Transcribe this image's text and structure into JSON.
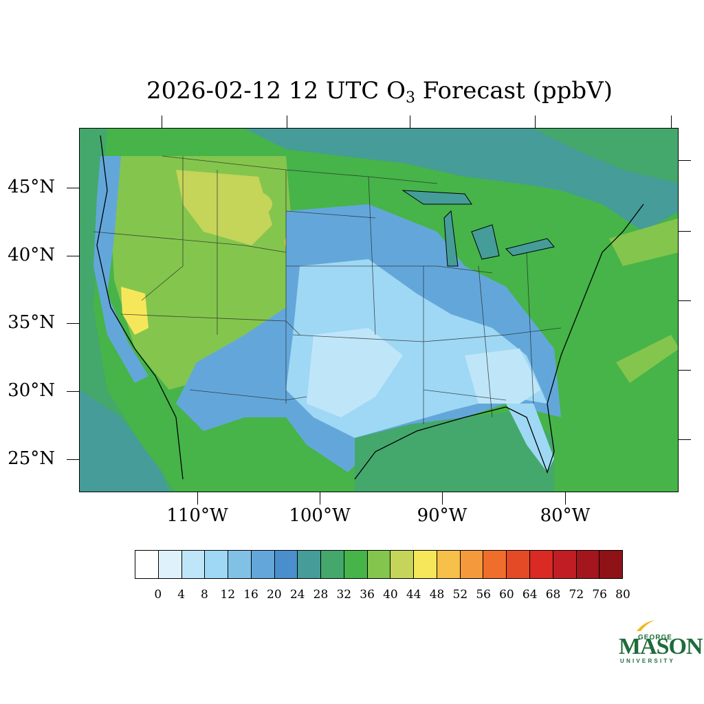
{
  "title": {
    "prefix": "2026-02-12 12 UTC O",
    "subscript": "3",
    "suffix": " Forecast (ppbV)"
  },
  "map": {
    "projection": "lambert-conformal",
    "region": "CONUS",
    "lat_labels": [
      "45°N",
      "40°N",
      "35°N",
      "30°N",
      "25°N"
    ],
    "lon_labels": [
      "110°W",
      "100°W",
      "90°W",
      "80°W"
    ]
  },
  "colorbar": {
    "colors": [
      "#ffffff",
      "#dff2fb",
      "#bfe6f8",
      "#9fd8f4",
      "#82c1e6",
      "#63a7da",
      "#4a8fcb",
      "#469c98",
      "#44a86c",
      "#46b449",
      "#84c54e",
      "#c4d55a",
      "#f6e75a",
      "#f6c04a",
      "#f49a3c",
      "#f06e2c",
      "#e54a26",
      "#d92a24",
      "#c01e24",
      "#a4161e",
      "#8e1216"
    ],
    "labels": [
      "0",
      "4",
      "8",
      "12",
      "16",
      "20",
      "24",
      "28",
      "32",
      "36",
      "40",
      "44",
      "48",
      "52",
      "56",
      "60",
      "64",
      "68",
      "72",
      "76",
      "80"
    ]
  },
  "logo": {
    "line1": "GEORGE",
    "line2": "MASON",
    "line3": "UNIVERSITY",
    "color": "#1f6b3a",
    "accent": "#f2b81d"
  }
}
